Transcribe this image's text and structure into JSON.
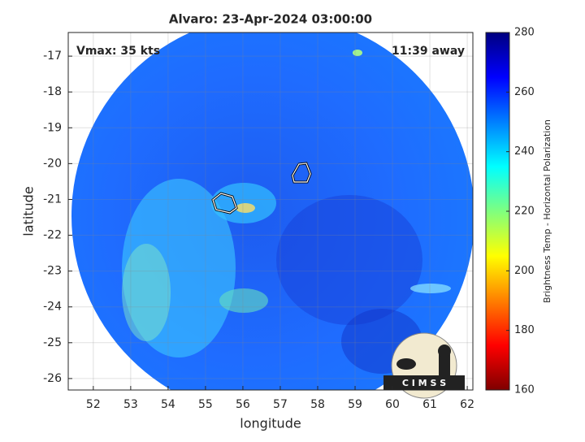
{
  "chart_data": {
    "type": "image",
    "title": "Alvaro: 23-Apr-2024 03:00:00",
    "annotations": [
      "Vmax: 35 kts",
      "11:39 away"
    ],
    "xlabel": "longitude",
    "ylabel": "latitude",
    "xlim": [
      51.33,
      62.15
    ],
    "xticks": [
      52,
      53,
      54,
      55,
      56,
      57,
      58,
      59,
      60,
      61,
      62
    ],
    "ylim": [
      -26.32,
      -16.34
    ],
    "yticks": [
      -26,
      -25,
      -24,
      -23,
      -22,
      -21,
      -20,
      -19,
      -18,
      -17
    ],
    "grid": true,
    "colorbar": {
      "label": "Brightness Temp - Horizontal Polarization",
      "lim": [
        160,
        280
      ],
      "ticks": [
        160,
        180,
        200,
        220,
        240,
        260,
        280
      ],
      "colormap": [
        "#7f0000",
        "#ff0000",
        "#ff7f00",
        "#ffff00",
        "#7fff7f",
        "#00ffff",
        "#007fff",
        "#0000ff",
        "#00007f"
      ]
    },
    "logo_text": "C I M S S"
  }
}
